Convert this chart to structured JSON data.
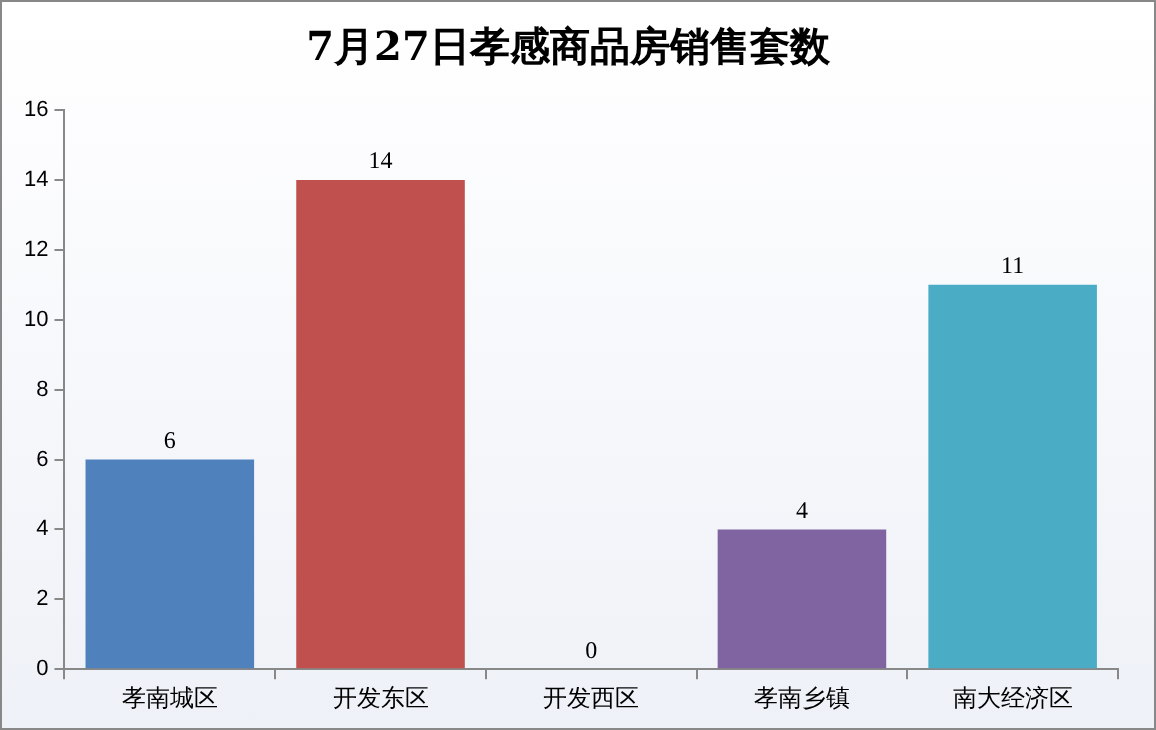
{
  "chart_data": {
    "type": "bar",
    "title": "7月27日孝感商品房销售套数",
    "categories": [
      "孝南城区",
      "开发东区",
      "开发西区",
      "孝南乡镇",
      "南大经济区"
    ],
    "values": [
      6,
      14,
      0,
      4,
      11
    ],
    "colors": [
      "#4f81bd",
      "#c0504d",
      "#9bbb59",
      "#8064a2",
      "#4bacc6"
    ],
    "ylim": [
      0,
      16
    ],
    "yticks": [
      0,
      2,
      4,
      6,
      8,
      10,
      12,
      14,
      16
    ],
    "grid": false,
    "legend": false,
    "data_labels": true
  }
}
